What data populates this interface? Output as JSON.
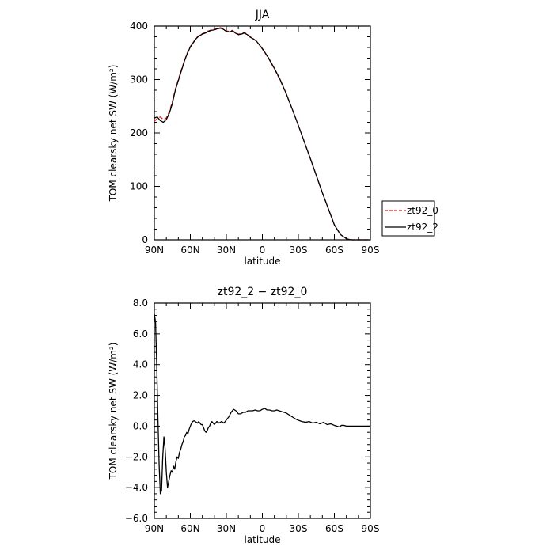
{
  "chart_data": [
    {
      "type": "line",
      "title": "JJA",
      "xlabel": "latitude",
      "ylabel": "TOM clearsky net SW (W/m²)",
      "xlim": [
        90,
        -90
      ],
      "ylim": [
        0,
        400
      ],
      "xticks": [
        90,
        60,
        30,
        0,
        -30,
        -60,
        -90
      ],
      "xtick_labels": [
        "90N",
        "60N",
        "30N",
        "0",
        "30S",
        "60S",
        "90S"
      ],
      "yticks": [
        0,
        100,
        200,
        300,
        400
      ],
      "ytick_labels": [
        "0",
        "100",
        "200",
        "300",
        "400"
      ],
      "legend": "outside-right",
      "series": [
        {
          "name": "zt92_0",
          "style": "dashed",
          "color": "#e0201a",
          "x": [
            90,
            87.5,
            85,
            82.5,
            80,
            77.5,
            75,
            72.5,
            70,
            67.5,
            65,
            62.5,
            60,
            57.5,
            55,
            52.5,
            50,
            47.5,
            45,
            42.5,
            40,
            37.5,
            35,
            32.5,
            30,
            27.5,
            25,
            22.5,
            20,
            17.5,
            15,
            12.5,
            10,
            7.5,
            5,
            2.5,
            0,
            -5,
            -10,
            -15,
            -20,
            -25,
            -30,
            -35,
            -40,
            -45,
            -50,
            -55,
            -60,
            -65,
            -70,
            -72.5,
            -75,
            -77.5,
            -80,
            -85,
            -90
          ],
          "y": [
            222,
            227,
            230,
            225,
            228,
            240,
            258,
            282,
            300,
            318,
            335,
            350,
            362,
            370,
            378,
            383,
            386,
            388,
            391,
            393,
            394,
            396,
            397,
            395,
            391,
            390,
            392,
            388,
            385,
            386,
            388,
            385,
            380,
            376,
            372,
            365,
            357,
            340,
            320,
            298,
            272,
            244,
            214,
            183,
            152,
            120,
            88,
            58,
            28,
            10,
            2,
            0.5,
            0,
            0,
            0,
            0,
            0
          ]
        },
        {
          "name": "zt92_2",
          "style": "solid",
          "color": "#000000",
          "x": [
            90,
            87.5,
            85,
            82.5,
            80,
            77.5,
            75,
            72.5,
            70,
            67.5,
            65,
            62.5,
            60,
            57.5,
            55,
            52.5,
            50,
            47.5,
            45,
            42.5,
            40,
            37.5,
            35,
            32.5,
            30,
            27.5,
            25,
            22.5,
            20,
            17.5,
            15,
            12.5,
            10,
            7.5,
            5,
            2.5,
            0,
            -5,
            -10,
            -15,
            -20,
            -25,
            -30,
            -35,
            -40,
            -45,
            -50,
            -55,
            -60,
            -65,
            -70,
            -72.5,
            -75,
            -77.5,
            -80,
            -85,
            -90
          ],
          "y": [
            228,
            230,
            223,
            220,
            225,
            237,
            255,
            280,
            298,
            316,
            334,
            349,
            361,
            369,
            377,
            382,
            385,
            387,
            390,
            392,
            393,
            395,
            396,
            394,
            390,
            389,
            391,
            387,
            384,
            385,
            387,
            384,
            379,
            376,
            372,
            365,
            358,
            341,
            321,
            299,
            273,
            244,
            214,
            183,
            152,
            120,
            88,
            58,
            28,
            10,
            2,
            0.5,
            0,
            0,
            0,
            0,
            0
          ]
        }
      ]
    },
    {
      "type": "line",
      "title": "zt92_2 − zt92_0",
      "xlabel": "latitude",
      "ylabel": "TOM clearsky net SW (W/m²)",
      "xlim": [
        90,
        -90
      ],
      "ylim": [
        -6,
        8
      ],
      "xticks": [
        90,
        60,
        30,
        0,
        -30,
        -60,
        -90
      ],
      "xtick_labels": [
        "90N",
        "60N",
        "30N",
        "0",
        "30S",
        "60S",
        "90S"
      ],
      "yticks": [
        -6,
        -4,
        -2,
        0,
        2,
        4,
        6,
        8
      ],
      "ytick_labels": [
        "−6.0",
        "−4.0",
        "−2.0",
        "0.0",
        "2.0",
        "4.0",
        "6.0",
        "8.0"
      ],
      "series": [
        {
          "style": "solid",
          "color": "#000000",
          "x": [
            90,
            89,
            88,
            87,
            86,
            85,
            84,
            83,
            82,
            81,
            80,
            79,
            78,
            77,
            76,
            75,
            74,
            73,
            72,
            71,
            70,
            69,
            68,
            67,
            66,
            65,
            64,
            63,
            62,
            61,
            60,
            59,
            58,
            57,
            56,
            55,
            54,
            53,
            52,
            51,
            50,
            49,
            48,
            47,
            46,
            45,
            44,
            43,
            42,
            41,
            40,
            38,
            36,
            34,
            32,
            30,
            28,
            26,
            24,
            22,
            20,
            18,
            16,
            14,
            12,
            10,
            8,
            6,
            4,
            2,
            0,
            -2,
            -4,
            -6,
            -8,
            -10,
            -12,
            -14,
            -16,
            -18,
            -20,
            -22,
            -24,
            -26,
            -28,
            -30,
            -33,
            -36,
            -39,
            -42,
            -45,
            -48,
            -51,
            -54,
            -57,
            -60,
            -62,
            -64,
            -66,
            -68,
            -70,
            -75,
            -80,
            -85,
            -90
          ],
          "y": [
            7.3,
            6.8,
            4.0,
            0.5,
            -2.5,
            -4.4,
            -4.2,
            -2.0,
            -0.7,
            -1.5,
            -3.0,
            -4.0,
            -3.6,
            -3.2,
            -2.9,
            -3.0,
            -2.6,
            -2.8,
            -2.3,
            -2.0,
            -2.1,
            -1.7,
            -1.5,
            -1.2,
            -1.0,
            -0.7,
            -0.6,
            -0.4,
            -0.5,
            -0.2,
            0.0,
            0.2,
            0.3,
            0.35,
            0.3,
            0.25,
            0.2,
            0.3,
            0.2,
            0.1,
            0.1,
            -0.1,
            -0.3,
            -0.4,
            -0.3,
            -0.1,
            0.0,
            0.2,
            0.3,
            0.2,
            0.1,
            0.3,
            0.2,
            0.3,
            0.2,
            0.4,
            0.6,
            0.9,
            1.1,
            1.0,
            0.8,
            0.8,
            0.9,
            0.9,
            1.0,
            1.0,
            1.0,
            1.05,
            1.0,
            1.0,
            1.1,
            1.15,
            1.05,
            1.05,
            1.0,
            1.0,
            1.05,
            1.0,
            0.95,
            0.9,
            0.85,
            0.75,
            0.65,
            0.55,
            0.45,
            0.38,
            0.3,
            0.25,
            0.3,
            0.2,
            0.25,
            0.15,
            0.25,
            0.1,
            0.15,
            0.05,
            0.0,
            -0.05,
            0.05,
            0.05,
            0.0,
            0.0,
            0.0,
            0.0,
            0.0
          ]
        }
      ]
    }
  ]
}
